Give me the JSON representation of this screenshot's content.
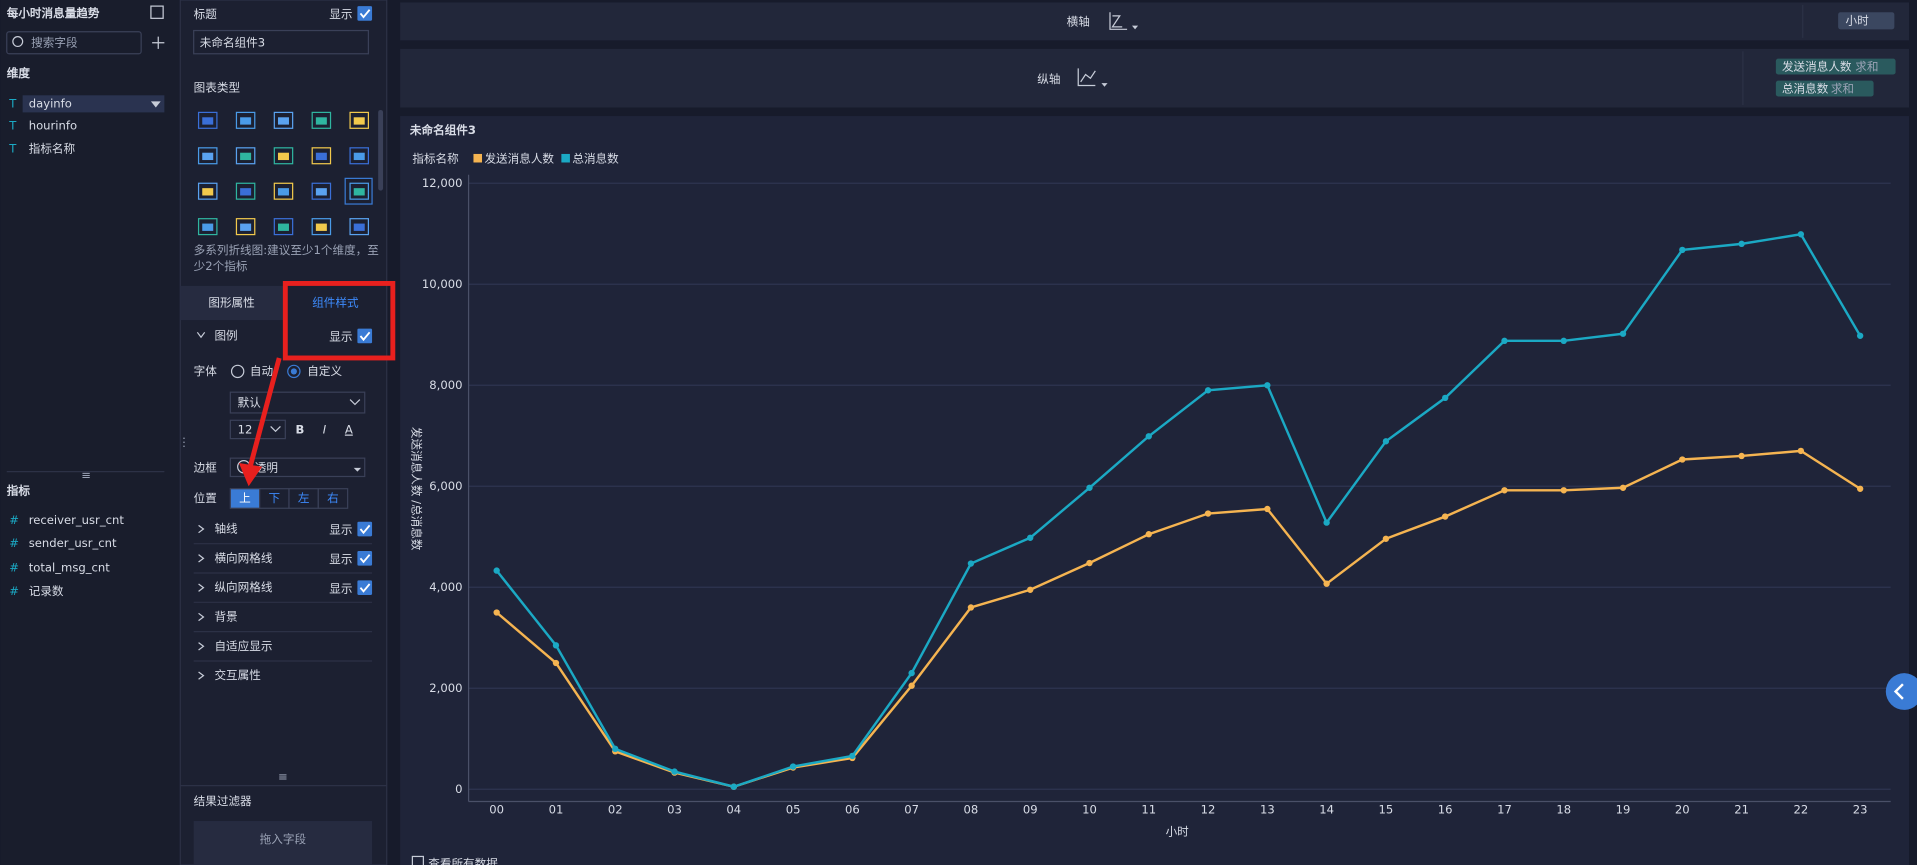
{
  "sidebar": {
    "title": "每小时消息量趋势",
    "search_placeholder": "搜索字段",
    "dimensions_label": "维度",
    "dimensions": [
      "dayinfo",
      "hourinfo",
      "指标名称"
    ],
    "measures_label": "指标",
    "measures": [
      "receiver_usr_cnt",
      "sender_usr_cnt",
      "total_msg_cnt",
      "记录数"
    ]
  },
  "settings": {
    "title_label": "标题",
    "title_show": "显示",
    "title_value": "未命名组件3",
    "chart_type_label": "图表类型",
    "chart_type_hint": [
      "多系列折线图:建议至少1个维度，至",
      "少2个指标"
    ],
    "tabs": [
      "图形属性",
      "组件样式"
    ],
    "legend_label": "图例",
    "legend_show": "显示",
    "font_label": "字体",
    "font_modes": [
      "自动",
      "自定义"
    ],
    "font_family": "默认",
    "font_size": "12",
    "font_styles": [
      "B",
      "I",
      "A"
    ],
    "border_label": "边框",
    "border_value": "透明",
    "position_label": "位置",
    "positions": [
      "上",
      "下",
      "左",
      "右"
    ],
    "sections": [
      {
        "name": "轴线",
        "toggle": "显示"
      },
      {
        "name": "横向网格线",
        "toggle": "显示"
      },
      {
        "name": "纵向网格线",
        "toggle": "显示"
      },
      {
        "name": "背景"
      },
      {
        "name": "自适应显示"
      },
      {
        "name": "交互属性"
      }
    ],
    "filter_label": "结果过滤器",
    "filter_drop": "拖入字段"
  },
  "shelves": {
    "x_label": "横轴",
    "x_fields": [
      "小时"
    ],
    "y_label": "纵轴",
    "y_fields": [
      {
        "name": "发送消息人数",
        "agg": "求和"
      },
      {
        "name": "总消息数",
        "agg": "求和"
      }
    ]
  },
  "chart_data": {
    "type": "line",
    "title": "未命名组件3",
    "legend_title": "指标名称",
    "x_label": "小时",
    "y_label": "发送消息人数 /总消息数",
    "categories": [
      "00",
      "01",
      "02",
      "03",
      "04",
      "05",
      "06",
      "07",
      "08",
      "09",
      "10",
      "11",
      "12",
      "13",
      "14",
      "15",
      "16",
      "17",
      "18",
      "19",
      "20",
      "21",
      "22",
      "23"
    ],
    "series": [
      {
        "name": "发送消息人数",
        "color": "#f5b451",
        "values": [
          3500,
          2500,
          750,
          330,
          50,
          430,
          620,
          2050,
          3600,
          3950,
          4480,
          5050,
          5460,
          5550,
          4070,
          4960,
          5400,
          5920,
          5920,
          5970,
          6530,
          6600,
          6700,
          5950
        ]
      },
      {
        "name": "总消息数",
        "color": "#1ba9c4",
        "values": [
          4330,
          2850,
          800,
          350,
          50,
          450,
          660,
          2300,
          4470,
          4980,
          5970,
          6990,
          7900,
          8000,
          5280,
          6890,
          7750,
          8880,
          8880,
          9020,
          10680,
          10800,
          10990,
          8980
        ]
      }
    ],
    "ylim": [
      0,
      12000
    ],
    "yticks": [
      0,
      {
        "value": 2000,
        "label": "2,000"
      },
      {
        "value": 4000,
        "label": "4,000"
      },
      {
        "value": 6000,
        "label": "6,000"
      },
      {
        "value": 8000,
        "label": "8,000"
      },
      {
        "value": 10000,
        "label": "10,000"
      },
      {
        "value": 12000,
        "label": "12,000"
      }
    ],
    "grid": true
  },
  "view_all": "查看所有数据"
}
